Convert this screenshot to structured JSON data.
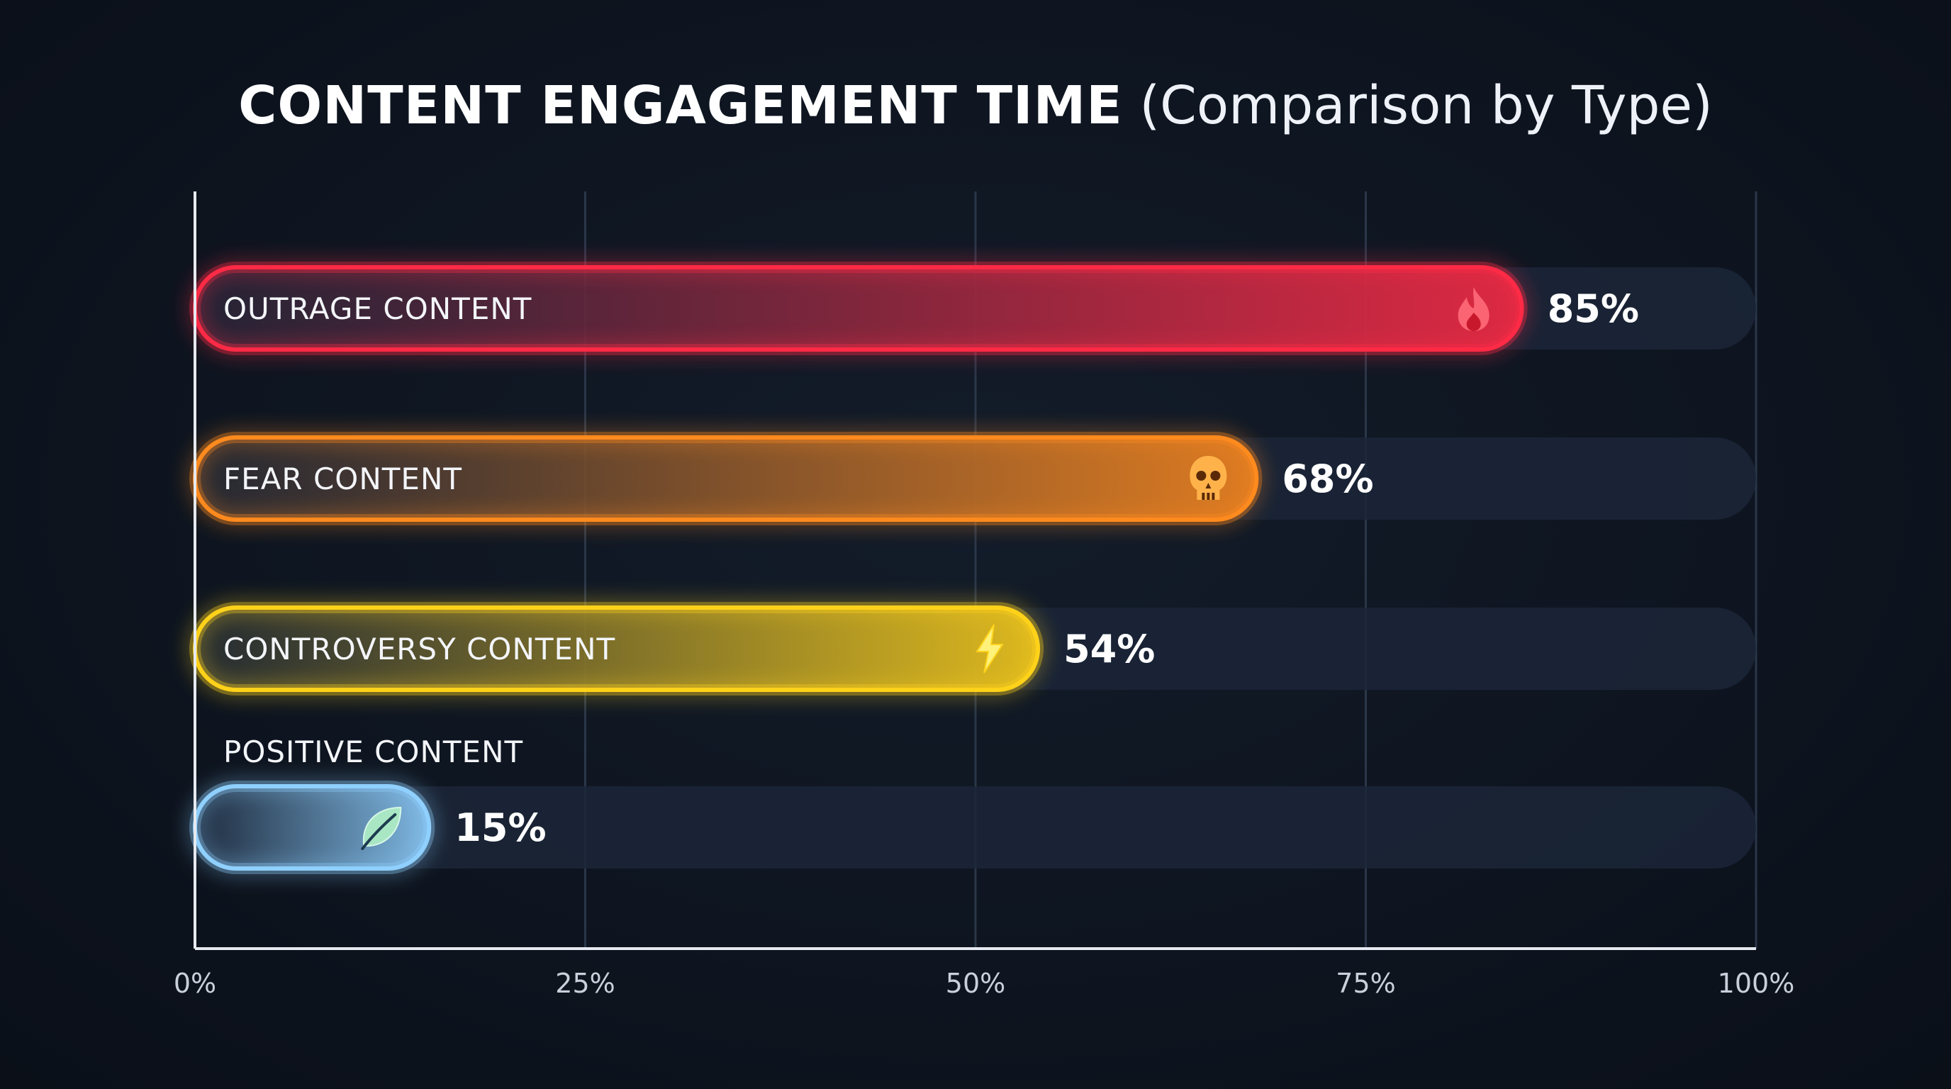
{
  "chart_data": {
    "type": "bar",
    "orientation": "horizontal",
    "title": "CONTENT ENGAGEMENT TIME",
    "subtitle": "(Comparison by Type)",
    "categories": [
      "OUTRAGE CONTENT",
      "FEAR CONTENT",
      "CONTROVERSY CONTENT",
      "POSITIVE CONTENT"
    ],
    "values": [
      85,
      68,
      54,
      15
    ],
    "value_labels": [
      "85%",
      "68%",
      "54%",
      "15%"
    ],
    "icons": [
      "flame-icon",
      "skull-icon",
      "lightning-icon",
      "leaf-icon"
    ],
    "colors": [
      "#ff2a45",
      "#ff8a1e",
      "#ffd21a",
      "#8fd0ff"
    ],
    "xlim": [
      0,
      100
    ],
    "xticks": [
      0,
      25,
      50,
      75,
      100
    ],
    "xtick_labels": [
      "0%",
      "25%",
      "50%",
      "75%",
      "100%"
    ],
    "grid": true,
    "legend": "none"
  }
}
